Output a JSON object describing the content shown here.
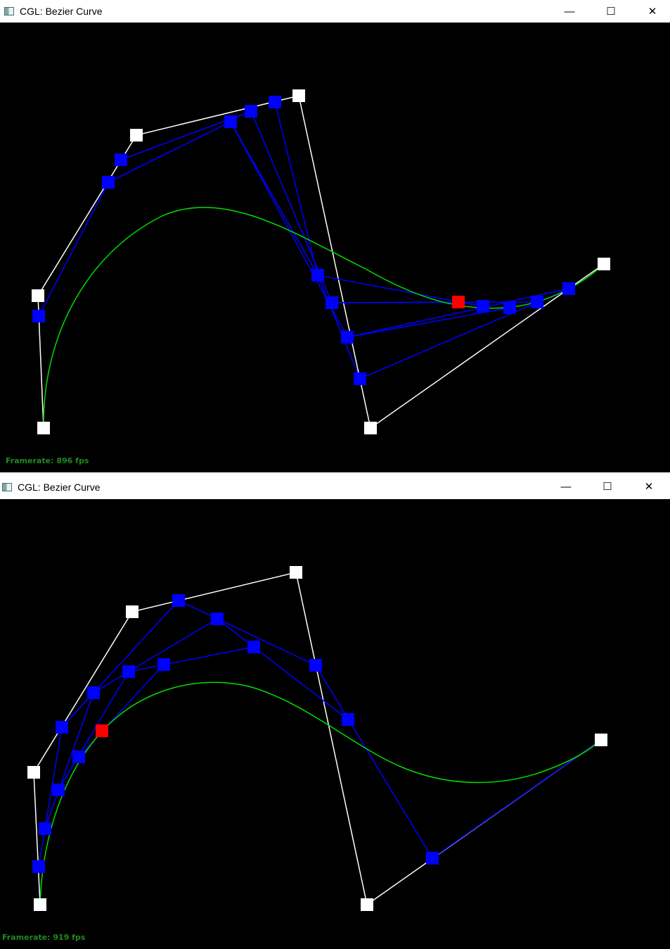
{
  "windows": [
    {
      "title": "CGL: Bezier Curve",
      "icon": "app-window-icon",
      "controls": {
        "minimize": "—",
        "maximize": "☐",
        "close": "✕"
      },
      "framerate_text": "Framerate: 896 fps",
      "marker_colors": {
        "control": "#ffffff",
        "intermediate": "#0000ff",
        "current": "#ff0000",
        "curve": "#00cc00"
      }
    },
    {
      "title": "CGL: Bezier Curve",
      "icon": "app-window-icon",
      "controls": {
        "minimize": "—",
        "maximize": "☐",
        "close": "✕"
      },
      "framerate_text": "Framerate: 919 fps",
      "marker_colors": {
        "control": "#ffffff",
        "intermediate": "#0000ff",
        "current": "#ff0000",
        "curve": "#00cc00"
      }
    }
  ]
}
